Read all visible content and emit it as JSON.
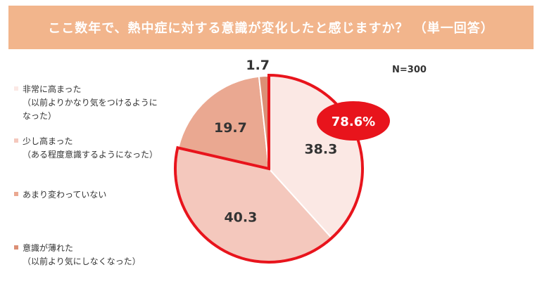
{
  "title": "ここ数年で、熱中症に対する意識が変化したと感じますか？ （単一回答）",
  "sample_size": "N=300",
  "highlight": {
    "label": "78.6%",
    "color": "#e8141c"
  },
  "colors": {
    "title_bar": "#f2b58c",
    "outline": "#e8141c"
  },
  "chart_data": {
    "type": "pie",
    "title": "ここ数年で、熱中症に対する意識が変化したと感じますか？ （単一回答）",
    "start_angle_deg": 0,
    "direction": "clockwise",
    "slices": [
      {
        "label": "非常に高まった",
        "sublabel": "（以前よりかなり気をつけるように",
        "sublabel2": "なった）",
        "value": 38.3,
        "value_label": "38.3",
        "color": "#fbe8e4"
      },
      {
        "label": "少し高まった",
        "sublabel": "（ある程度意識するようになった）",
        "sublabel2": "",
        "value": 40.3,
        "value_label": "40.3",
        "color": "#f4c8bd"
      },
      {
        "label": "あまり変わっていない",
        "sublabel": "",
        "sublabel2": "",
        "value": 19.7,
        "value_label": "19.7",
        "color": "#eaa891"
      },
      {
        "label": "意識が薄れた",
        "sublabel": "（以前より気にしなくなった）",
        "sublabel2": "",
        "value": 1.7,
        "value_label": "1.7",
        "color": "#dc8f75"
      }
    ]
  }
}
